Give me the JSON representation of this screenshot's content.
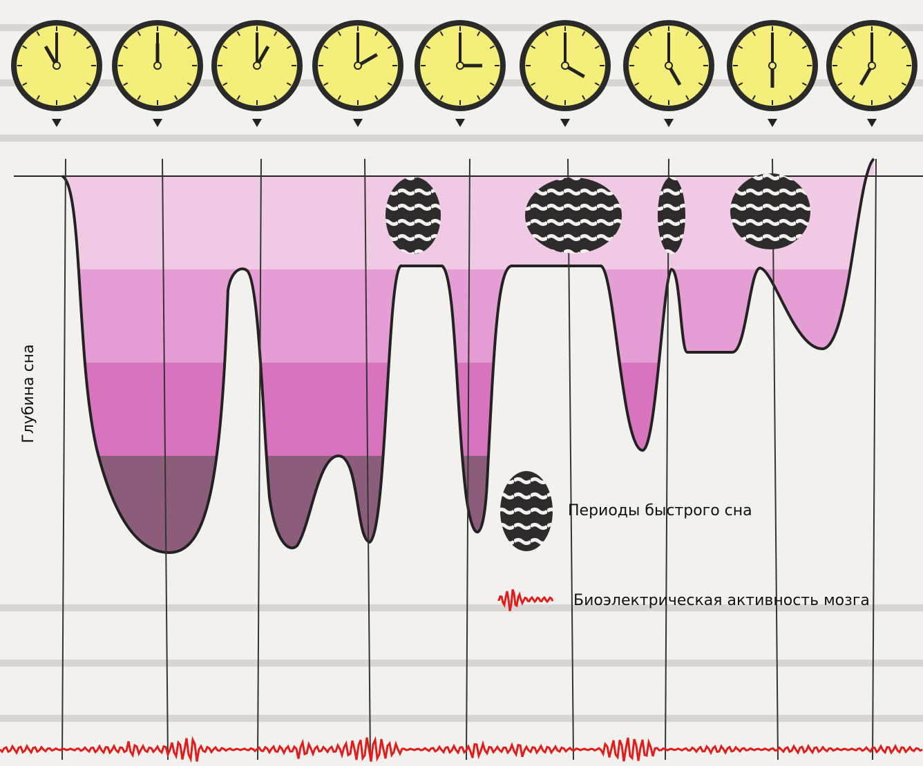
{
  "y_axis_label": "Глубина сна",
  "legend": {
    "rem": "Периоды быстрого сна",
    "eeg": "Биоэлектрическая активность мозга"
  }
}
